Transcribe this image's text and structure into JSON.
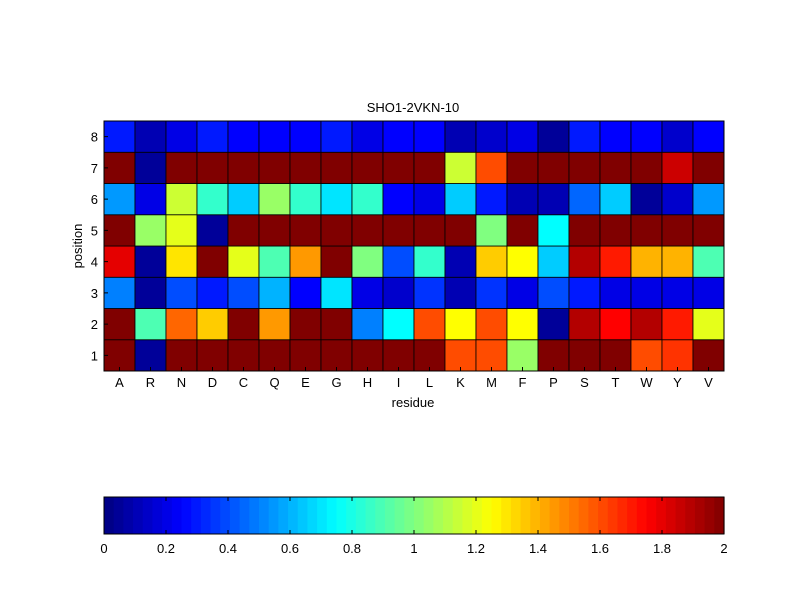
{
  "chart_data": {
    "type": "heatmap",
    "title": "SHO1-2VKN-10",
    "xlabel": "residue",
    "ylabel": "position",
    "x_categories": [
      "A",
      "R",
      "N",
      "D",
      "C",
      "Q",
      "E",
      "G",
      "H",
      "I",
      "L",
      "K",
      "M",
      "F",
      "P",
      "S",
      "T",
      "W",
      "Y",
      "V"
    ],
    "y_categories": [
      "1",
      "2",
      "3",
      "4",
      "5",
      "6",
      "7",
      "8"
    ],
    "colormap": "jet",
    "clim": [
      0,
      2
    ],
    "colorbar": {
      "placement": "bottom",
      "ticks": [
        "0",
        "0.2",
        "0.4",
        "0.6",
        "0.8",
        "1",
        "1.2",
        "1.4",
        "1.6",
        "1.8",
        "2"
      ]
    },
    "values": [
      [
        2.0,
        0.05,
        2.0,
        2.0,
        2.0,
        2.0,
        2.0,
        2.0,
        2.0,
        2.0,
        2.0,
        1.6,
        1.6,
        1.05,
        2.0,
        2.0,
        2.0,
        1.6,
        1.65,
        2.0
      ],
      [
        2.0,
        0.9,
        1.55,
        1.35,
        2.0,
        1.45,
        2.0,
        2.0,
        0.5,
        0.75,
        1.6,
        1.25,
        1.6,
        1.25,
        0.05,
        1.9,
        1.75,
        1.9,
        1.7,
        1.2
      ],
      [
        0.5,
        0.05,
        0.4,
        0.3,
        0.4,
        0.6,
        0.25,
        0.7,
        0.2,
        0.15,
        0.35,
        0.1,
        0.35,
        0.2,
        0.4,
        0.3,
        0.2,
        0.2,
        0.2,
        0.2
      ],
      [
        1.8,
        0.05,
        1.3,
        2.0,
        1.2,
        0.9,
        1.45,
        2.0,
        1.0,
        0.4,
        0.85,
        0.1,
        1.35,
        1.25,
        0.65,
        1.9,
        1.7,
        1.4,
        1.4,
        0.9
      ],
      [
        2.0,
        1.05,
        1.2,
        0.05,
        2.0,
        2.0,
        2.0,
        2.0,
        2.0,
        2.0,
        2.0,
        2.0,
        1.0,
        2.0,
        0.75,
        2.0,
        2.0,
        2.0,
        2.0,
        2.0
      ],
      [
        0.55,
        0.2,
        1.15,
        0.85,
        0.65,
        1.05,
        0.85,
        0.7,
        0.85,
        0.25,
        0.2,
        0.65,
        0.3,
        0.1,
        0.1,
        0.45,
        0.65,
        0.05,
        0.15,
        0.55
      ],
      [
        2.0,
        0.05,
        2.0,
        2.0,
        2.0,
        2.0,
        2.0,
        2.0,
        2.0,
        2.0,
        2.0,
        1.15,
        1.6,
        2.0,
        2.0,
        2.0,
        2.0,
        2.0,
        1.85,
        2.0
      ],
      [
        0.3,
        0.1,
        0.2,
        0.3,
        0.25,
        0.25,
        0.25,
        0.3,
        0.2,
        0.25,
        0.25,
        0.1,
        0.15,
        0.2,
        0.05,
        0.3,
        0.25,
        0.25,
        0.15,
        0.25
      ]
    ]
  }
}
